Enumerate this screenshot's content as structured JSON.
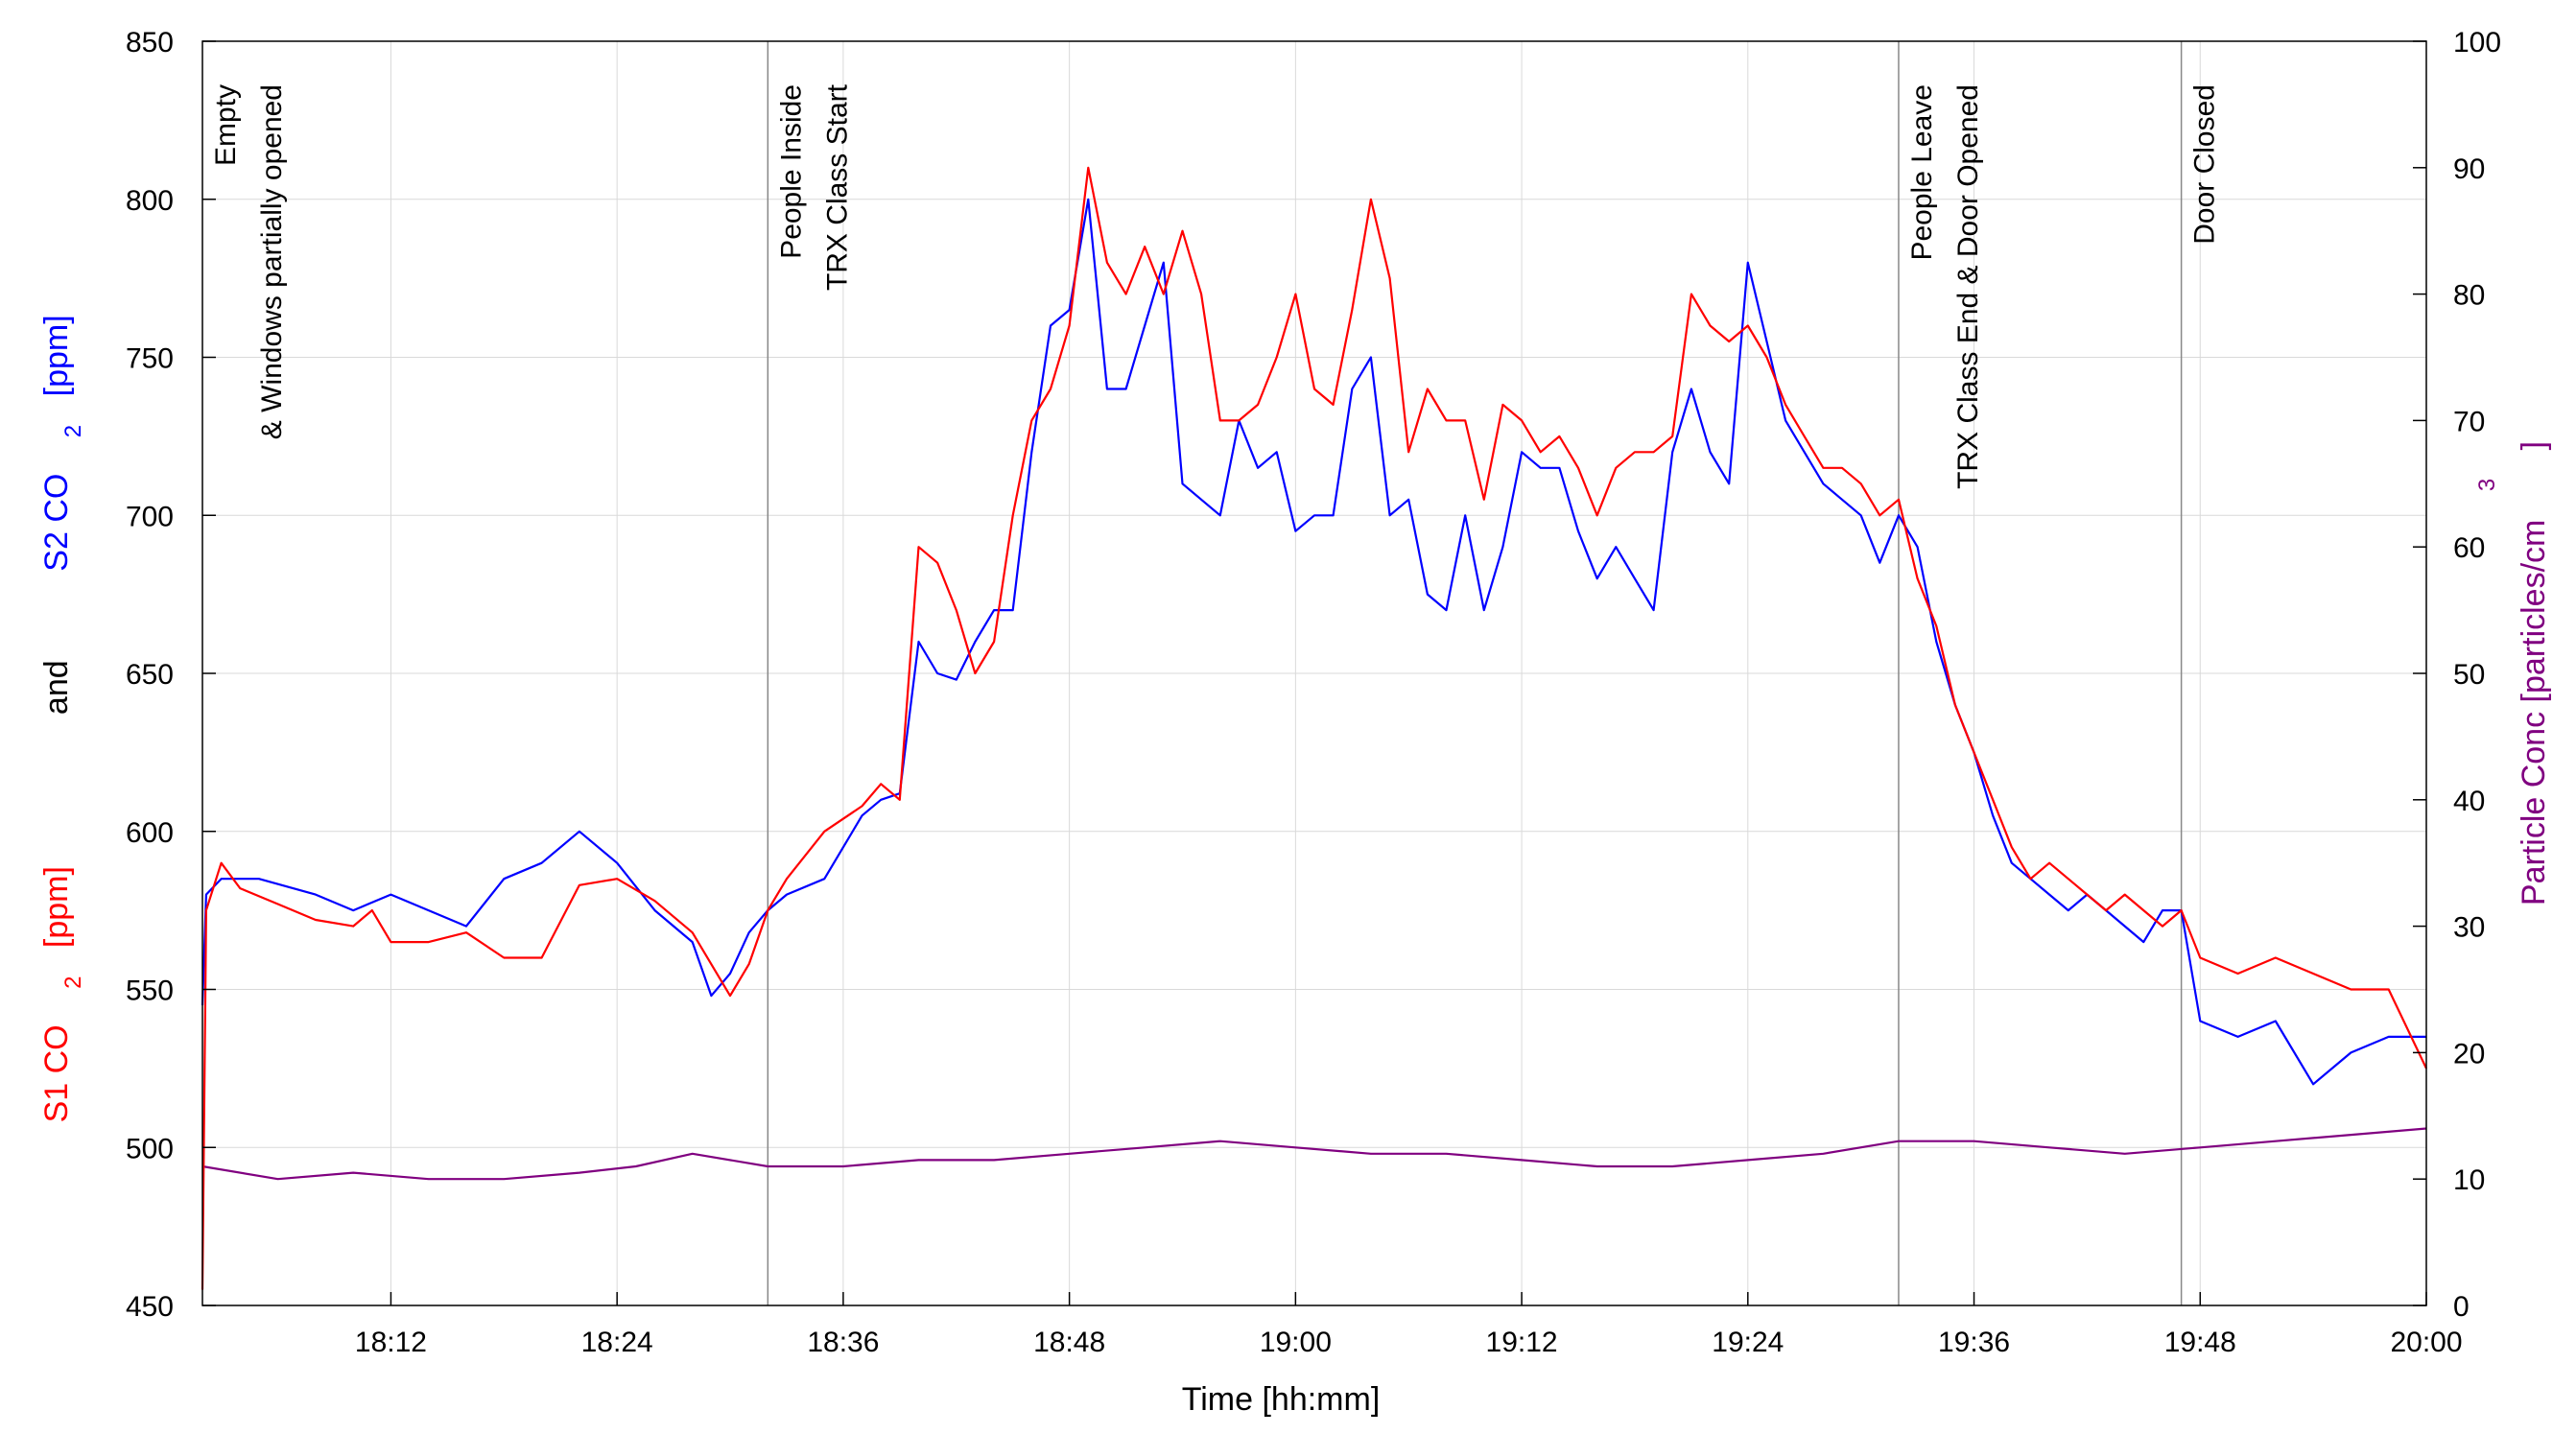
{
  "chart_data": {
    "type": "line",
    "xlabel": "Time [hh:mm]",
    "x_ticks": [
      "18:12",
      "18:24",
      "18:36",
      "18:48",
      "19:00",
      "19:12",
      "19:24",
      "19:36",
      "19:48",
      "20:00"
    ],
    "x_range": [
      "18:02",
      "20:00"
    ],
    "y_left": {
      "range": [
        450,
        850
      ],
      "ticks": [
        "450",
        "500",
        "550",
        "600",
        "650",
        "700",
        "750",
        "800",
        "850"
      ],
      "label_parts": [
        {
          "text": "S1 CO",
          "color": "#ff0000"
        },
        {
          "text": "2",
          "color": "#ff0000",
          "subscript": true
        },
        {
          "text": "[ppm]",
          "color": "#ff0000"
        },
        {
          "text": "and",
          "color": "#000000"
        },
        {
          "text": "S2 CO",
          "color": "#0000ff"
        },
        {
          "text": "2",
          "color": "#0000ff",
          "subscript": true
        },
        {
          "text": "[ppm]",
          "color": "#0000ff"
        }
      ]
    },
    "y_right": {
      "range": [
        0,
        100
      ],
      "ticks": [
        "0",
        "10",
        "20",
        "30",
        "40",
        "50",
        "60",
        "70",
        "80",
        "90",
        "100"
      ],
      "label": "Particle Conc [particles/cm",
      "label_superscript": "3",
      "label_end": "]",
      "color": "#800080"
    },
    "grid": true,
    "legend": "none",
    "events": [
      {
        "time": "18:02",
        "lines": [
          "Empty",
          "& Windows partially opened"
        ]
      },
      {
        "time": "18:32",
        "lines": [
          "People Inside",
          "TRX Class Start"
        ]
      },
      {
        "time": "19:32",
        "lines": [
          "People Leave",
          "TRX Class End & Door Opened"
        ]
      },
      {
        "time": "19:47",
        "lines": [
          "Door Closed"
        ]
      }
    ],
    "series": [
      {
        "axis": "left",
        "color": "#ff0000",
        "points": [
          [
            "18:02",
            455
          ],
          [
            "18:02.2",
            575
          ],
          [
            "18:03",
            590
          ],
          [
            "18:04",
            582
          ],
          [
            "18:06",
            577
          ],
          [
            "18:08",
            572
          ],
          [
            "18:10",
            570
          ],
          [
            "18:11",
            575
          ],
          [
            "18:12",
            565
          ],
          [
            "18:14",
            565
          ],
          [
            "18:16",
            568
          ],
          [
            "18:18",
            560
          ],
          [
            "18:20",
            560
          ],
          [
            "18:22",
            583
          ],
          [
            "18:24",
            585
          ],
          [
            "18:26",
            578
          ],
          [
            "18:28",
            568
          ],
          [
            "18:30",
            548
          ],
          [
            "18:31",
            558
          ],
          [
            "18:32",
            575
          ],
          [
            "18:33",
            585
          ],
          [
            "18:35",
            600
          ],
          [
            "18:37",
            608
          ],
          [
            "18:38",
            615
          ],
          [
            "18:39",
            610
          ],
          [
            "18:40",
            690
          ],
          [
            "18:41",
            685
          ],
          [
            "18:42",
            670
          ],
          [
            "18:43",
            650
          ],
          [
            "18:44",
            660
          ],
          [
            "18:45",
            700
          ],
          [
            "18:46",
            730
          ],
          [
            "18:47",
            740
          ],
          [
            "18:48",
            760
          ],
          [
            "18:49",
            810
          ],
          [
            "18:50",
            780
          ],
          [
            "18:51",
            770
          ],
          [
            "18:52",
            785
          ],
          [
            "18:53",
            770
          ],
          [
            "18:54",
            790
          ],
          [
            "18:55",
            770
          ],
          [
            "18:56",
            730
          ],
          [
            "18:57",
            730
          ],
          [
            "18:58",
            735
          ],
          [
            "18:59",
            750
          ],
          [
            "19:00",
            770
          ],
          [
            "19:01",
            740
          ],
          [
            "19:02",
            735
          ],
          [
            "19:03",
            765
          ],
          [
            "19:04",
            800
          ],
          [
            "19:05",
            775
          ],
          [
            "19:06",
            720
          ],
          [
            "19:07",
            740
          ],
          [
            "19:08",
            730
          ],
          [
            "19:09",
            730
          ],
          [
            "19:10",
            705
          ],
          [
            "19:11",
            735
          ],
          [
            "19:12",
            730
          ],
          [
            "19:13",
            720
          ],
          [
            "19:14",
            725
          ],
          [
            "19:15",
            715
          ],
          [
            "19:16",
            700
          ],
          [
            "19:17",
            715
          ],
          [
            "19:18",
            720
          ],
          [
            "19:19",
            720
          ],
          [
            "19:20",
            725
          ],
          [
            "19:21",
            770
          ],
          [
            "19:22",
            760
          ],
          [
            "19:23",
            755
          ],
          [
            "19:24",
            760
          ],
          [
            "19:25",
            750
          ],
          [
            "19:26",
            735
          ],
          [
            "19:27",
            725
          ],
          [
            "19:28",
            715
          ],
          [
            "19:29",
            715
          ],
          [
            "19:30",
            710
          ],
          [
            "19:31",
            700
          ],
          [
            "19:32",
            705
          ],
          [
            "19:33",
            680
          ],
          [
            "19:34",
            665
          ],
          [
            "19:35",
            640
          ],
          [
            "19:36",
            625
          ],
          [
            "19:37",
            610
          ],
          [
            "19:38",
            595
          ],
          [
            "19:39",
            585
          ],
          [
            "19:40",
            590
          ],
          [
            "19:41",
            585
          ],
          [
            "19:42",
            580
          ],
          [
            "19:43",
            575
          ],
          [
            "19:44",
            580
          ],
          [
            "19:45",
            575
          ],
          [
            "19:46",
            570
          ],
          [
            "19:47",
            575
          ],
          [
            "19:48",
            560
          ],
          [
            "19:50",
            555
          ],
          [
            "19:52",
            560
          ],
          [
            "19:54",
            555
          ],
          [
            "19:56",
            550
          ],
          [
            "19:58",
            550
          ],
          [
            "20:00",
            525
          ]
        ]
      },
      {
        "axis": "left",
        "color": "#0000ff",
        "points": [
          [
            "18:02",
            545
          ],
          [
            "18:02.2",
            580
          ],
          [
            "18:03",
            585
          ],
          [
            "18:05",
            585
          ],
          [
            "18:08",
            580
          ],
          [
            "18:10",
            575
          ],
          [
            "18:12",
            580
          ],
          [
            "18:14",
            575
          ],
          [
            "18:16",
            570
          ],
          [
            "18:18",
            585
          ],
          [
            "18:20",
            590
          ],
          [
            "18:22",
            600
          ],
          [
            "18:24",
            590
          ],
          [
            "18:26",
            575
          ],
          [
            "18:28",
            565
          ],
          [
            "18:29",
            548
          ],
          [
            "18:30",
            555
          ],
          [
            "18:31",
            568
          ],
          [
            "18:32",
            575
          ],
          [
            "18:33",
            580
          ],
          [
            "18:35",
            585
          ],
          [
            "18:37",
            605
          ],
          [
            "18:38",
            610
          ],
          [
            "18:39",
            612
          ],
          [
            "18:40",
            660
          ],
          [
            "18:41",
            650
          ],
          [
            "18:42",
            648
          ],
          [
            "18:43",
            660
          ],
          [
            "18:44",
            670
          ],
          [
            "18:45",
            670
          ],
          [
            "18:46",
            720
          ],
          [
            "18:47",
            760
          ],
          [
            "18:48",
            765
          ],
          [
            "18:49",
            800
          ],
          [
            "18:50",
            740
          ],
          [
            "18:51",
            740
          ],
          [
            "18:52",
            760
          ],
          [
            "18:53",
            780
          ],
          [
            "18:54",
            710
          ],
          [
            "18:55",
            705
          ],
          [
            "18:56",
            700
          ],
          [
            "18:57",
            730
          ],
          [
            "18:58",
            715
          ],
          [
            "18:59",
            720
          ],
          [
            "19:00",
            695
          ],
          [
            "19:01",
            700
          ],
          [
            "19:02",
            700
          ],
          [
            "19:03",
            740
          ],
          [
            "19:04",
            750
          ],
          [
            "19:05",
            700
          ],
          [
            "19:06",
            705
          ],
          [
            "19:07",
            675
          ],
          [
            "19:08",
            670
          ],
          [
            "19:09",
            700
          ],
          [
            "19:10",
            670
          ],
          [
            "19:11",
            690
          ],
          [
            "19:12",
            720
          ],
          [
            "19:13",
            715
          ],
          [
            "19:14",
            715
          ],
          [
            "19:15",
            695
          ],
          [
            "19:16",
            680
          ],
          [
            "19:17",
            690
          ],
          [
            "19:18",
            680
          ],
          [
            "19:19",
            670
          ],
          [
            "19:20",
            720
          ],
          [
            "19:21",
            740
          ],
          [
            "19:22",
            720
          ],
          [
            "19:23",
            710
          ],
          [
            "19:24",
            780
          ],
          [
            "19:25",
            755
          ],
          [
            "19:26",
            730
          ],
          [
            "19:27",
            720
          ],
          [
            "19:28",
            710
          ],
          [
            "19:29",
            705
          ],
          [
            "19:30",
            700
          ],
          [
            "19:31",
            685
          ],
          [
            "19:32",
            700
          ],
          [
            "19:33",
            690
          ],
          [
            "19:34",
            660
          ],
          [
            "19:35",
            640
          ],
          [
            "19:36",
            625
          ],
          [
            "19:37",
            605
          ],
          [
            "19:38",
            590
          ],
          [
            "19:39",
            585
          ],
          [
            "19:40",
            580
          ],
          [
            "19:41",
            575
          ],
          [
            "19:42",
            580
          ],
          [
            "19:43",
            575
          ],
          [
            "19:44",
            570
          ],
          [
            "19:45",
            565
          ],
          [
            "19:46",
            575
          ],
          [
            "19:47",
            575
          ],
          [
            "19:48",
            540
          ],
          [
            "19:50",
            535
          ],
          [
            "19:52",
            540
          ],
          [
            "19:54",
            520
          ],
          [
            "19:56",
            530
          ],
          [
            "19:58",
            535
          ],
          [
            "20:00",
            535
          ]
        ]
      },
      {
        "axis": "right",
        "color": "#800080",
        "points": [
          [
            "18:02",
            11
          ],
          [
            "18:06",
            10
          ],
          [
            "18:10",
            10.5
          ],
          [
            "18:14",
            10
          ],
          [
            "18:18",
            10
          ],
          [
            "18:22",
            10.5
          ],
          [
            "18:25",
            11
          ],
          [
            "18:28",
            12
          ],
          [
            "18:32",
            11
          ],
          [
            "18:36",
            11
          ],
          [
            "18:40",
            11.5
          ],
          [
            "18:44",
            11.5
          ],
          [
            "18:48",
            12
          ],
          [
            "18:52",
            12.5
          ],
          [
            "18:56",
            13
          ],
          [
            "19:00",
            12.5
          ],
          [
            "19:04",
            12
          ],
          [
            "19:08",
            12
          ],
          [
            "19:12",
            11.5
          ],
          [
            "19:16",
            11
          ],
          [
            "19:20",
            11
          ],
          [
            "19:24",
            11.5
          ],
          [
            "19:28",
            12
          ],
          [
            "19:32",
            13
          ],
          [
            "19:36",
            13
          ],
          [
            "19:40",
            12.5
          ],
          [
            "19:44",
            12
          ],
          [
            "19:48",
            12.5
          ],
          [
            "19:52",
            13
          ],
          [
            "19:56",
            13.5
          ],
          [
            "20:00",
            14
          ]
        ]
      }
    ]
  }
}
